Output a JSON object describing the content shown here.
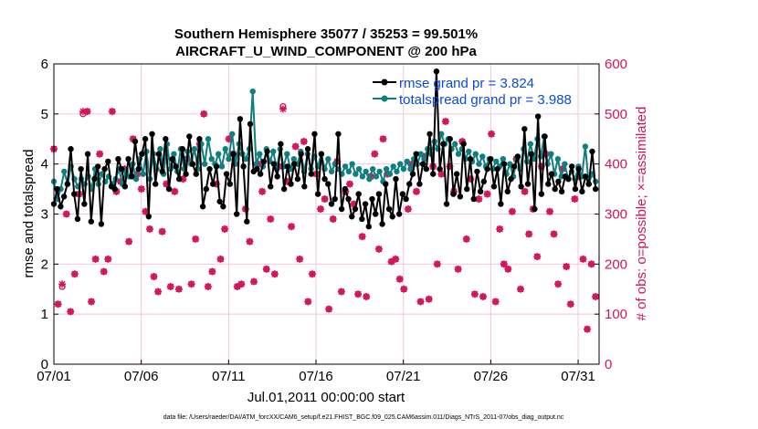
{
  "chart_data": {
    "type": "line",
    "title_line1": "Southern Hemisphere 35077 / 35253 = 99.501%",
    "title_line2": "AIRCRAFT_U_WIND_COMPONENT @ 200 hPa",
    "xlabel": "Jul.01,2011 00:00:00 start",
    "ylabel_left": "rmse and totalspread",
    "ylabel_right": "# of obs: o=possible; ×=assimilated",
    "xlim": [
      0,
      31.2
    ],
    "ylim_left": [
      0,
      6
    ],
    "ylim_right": [
      0,
      600
    ],
    "x_ticks": [
      0,
      5,
      10,
      15,
      20,
      25,
      30
    ],
    "x_tick_labels": [
      "07/01",
      "07/06",
      "07/11",
      "07/16",
      "07/21",
      "07/26",
      "07/31"
    ],
    "y_ticks_left": [
      "0",
      "1",
      "2",
      "3",
      "4",
      "5",
      "6"
    ],
    "y_ticks_right": [
      "0",
      "100",
      "200",
      "300",
      "400",
      "500",
      "600"
    ],
    "colors": {
      "rmse": "#000000",
      "totalspread": "#0f7f7f",
      "obs": "#d4145a",
      "legend_text": "#0a4bd9",
      "grid": "#f2c7d6"
    },
    "legend": [
      "rmse grand pr = 3.824",
      "totalspread grand pr = 3.988"
    ],
    "footer": "data file: /Users/raeder/DAI/ATM_forcXX/CAM6_setup/f.e21.FHIST_BGC.f09_025.CAM6assim.011/Diags_NTrS_2011-07/obs_diag_output.nc",
    "series": [
      {
        "name": "rmse",
        "axis": "left",
        "values": [
          3.2,
          3.5,
          3.15,
          3.35,
          3.6,
          4.3,
          3.4,
          2.9,
          3.9,
          3.2,
          4.2,
          2.85,
          3.7,
          3.95,
          2.8,
          3.9,
          4.05,
          3.55,
          3.5,
          4.1,
          3.9,
          3.55,
          4.1,
          3.75,
          4.45,
          3.9,
          4.2,
          4.5,
          2.95,
          4.6,
          3.6,
          4.2,
          3.85,
          4.5,
          3.5,
          4.1,
          3.95,
          3.7,
          4.3,
          3.8,
          4.55,
          4.0,
          3.8,
          4.5,
          3.15,
          3.5,
          3.9,
          3.6,
          3.95,
          3.25,
          3.15,
          3.8,
          3.6,
          4.2,
          3.0,
          4.9,
          3.95,
          2.85,
          4.8,
          3.85,
          3.9,
          3.8,
          4.05,
          4.25,
          3.55,
          4.0,
          3.75,
          4.4,
          3.5,
          3.95,
          3.6,
          4.0,
          3.7,
          4.2,
          3.55,
          4.3,
          3.8,
          4.6,
          3.4,
          4.2,
          3.7,
          3.6,
          3.2,
          3.3,
          4.6,
          3.1,
          3.5,
          3.3,
          2.95,
          3.1,
          3.4,
          2.9,
          3.2,
          2.75,
          3.3,
          3.0,
          3.4,
          2.8,
          3.6,
          3.1,
          2.95,
          3.7,
          3.0,
          3.4,
          3.3,
          3.6,
          3.8,
          4.2,
          3.6,
          4.0,
          3.9,
          4.6,
          3.8,
          5.85,
          3.9,
          4.4,
          3.2,
          4.5,
          3.4,
          3.8,
          3.35,
          4.4,
          3.5,
          4.1,
          3.3,
          3.85,
          3.45,
          3.65,
          3.9,
          4.1,
          3.55,
          3.9,
          3.2,
          4.0,
          3.45,
          3.7,
          3.95,
          4.15,
          3.55,
          4.7,
          3.6,
          4.2,
          3.1,
          4.95,
          3.4,
          4.55,
          3.6,
          3.8,
          3.5,
          3.65,
          3.45,
          3.75,
          3.7,
          3.95,
          3.5,
          3.9,
          3.45,
          3.75,
          3.6,
          4.25,
          3.5
        ]
      },
      {
        "name": "totalspread",
        "axis": "left",
        "values": [
          3.65,
          3.3,
          3.5,
          3.85,
          3.6,
          3.95,
          3.7,
          3.55,
          3.7,
          3.6,
          3.75,
          3.5,
          3.9,
          3.6,
          3.8,
          3.65,
          3.75,
          3.6,
          3.7,
          3.9,
          3.6,
          3.85,
          3.75,
          4.0,
          3.7,
          4.1,
          3.8,
          4.25,
          3.7,
          4.2,
          3.9,
          4.3,
          3.8,
          4.4,
          3.9,
          4.2,
          3.85,
          4.3,
          3.9,
          4.25,
          4.0,
          4.3,
          3.9,
          4.4,
          4.0,
          4.5,
          4.1,
          4.0,
          4.2,
          3.95,
          4.3,
          4.1,
          4.6,
          4.0,
          4.4,
          4.2,
          4.1,
          4.3,
          5.45,
          4.0,
          4.2,
          3.95,
          4.3,
          4.05,
          4.25,
          3.9,
          4.3,
          3.95,
          4.2,
          3.9,
          4.1,
          4.0,
          4.25,
          3.85,
          4.2,
          3.9,
          4.15,
          3.95,
          4.2,
          3.9,
          4.1,
          3.85,
          4.0,
          3.9,
          3.8,
          3.95,
          3.85,
          4.0,
          3.8,
          3.9,
          3.75,
          3.85,
          3.7,
          3.9,
          3.75,
          3.85,
          3.65,
          3.9,
          3.8,
          3.95,
          3.85,
          4.0,
          3.9,
          4.05,
          3.9,
          4.1,
          4.0,
          4.2,
          4.1,
          4.3,
          4.2,
          4.45,
          4.3,
          4.6,
          4.4,
          4.5,
          4.3,
          4.4,
          4.2,
          4.3,
          4.1,
          4.25,
          4.05,
          4.2,
          4.0,
          4.15,
          3.95,
          4.1,
          3.9,
          4.05,
          3.95,
          4.1,
          3.8,
          4.0,
          3.75,
          4.1,
          3.9,
          4.3,
          4.05,
          4.4,
          4.1,
          4.5,
          4.15,
          4.55,
          4.0,
          4.2,
          3.8,
          4.1,
          3.75,
          4.0,
          3.7,
          3.85,
          3.7,
          3.95,
          3.75,
          4.35,
          3.6,
          3.8,
          3.65
        ]
      },
      {
        "name": "obs_possible",
        "axis": "right",
        "values": [
          430,
          120,
          155,
          300,
          105,
          180,
          340,
          500,
          505,
          125,
          210,
          420,
          185,
          210,
          505,
          345,
          365,
          390,
          245,
          450,
          380,
          350,
          305,
          270,
          175,
          145,
          265,
          360,
          155,
          345,
          150,
          370,
          410,
          160,
          250,
          440,
          500,
          155,
          185,
          360,
          210,
          270,
          450,
          420,
          155,
          160,
          310,
          245,
          165,
          400,
          345,
          190,
          290,
          180,
          395,
          515,
          365,
          275,
          435,
          210,
          445,
          125,
          180,
          380,
          310,
          330,
          110,
          290,
          405,
          145,
          345,
          360,
          320,
          140,
          255,
          135,
          375,
          420,
          230,
          450,
          380,
          205,
          210,
          170,
          150,
          310,
          400,
          345,
          125,
          415,
          130,
          395,
          200,
          380,
          485,
          395,
          345,
          190,
          445,
          250,
          370,
          140,
          330,
          135,
          340,
          460,
          125,
          270,
          200,
          190,
          305,
          410,
          150,
          345,
          260,
          310,
          215,
          395,
          420,
          305,
          260,
          160,
          390,
          195,
          120,
          330,
          375,
          210,
          70,
          200,
          135
        ]
      },
      {
        "name": "obs_assimilated",
        "axis": "right",
        "values": [
          430,
          120,
          160,
          300,
          105,
          180,
          340,
          505,
          505,
          125,
          210,
          420,
          185,
          210,
          505,
          345,
          365,
          390,
          245,
          450,
          380,
          350,
          305,
          270,
          175,
          145,
          265,
          360,
          155,
          345,
          150,
          370,
          410,
          160,
          250,
          440,
          500,
          155,
          185,
          360,
          210,
          270,
          450,
          420,
          155,
          160,
          310,
          245,
          165,
          400,
          345,
          190,
          290,
          180,
          395,
          510,
          365,
          275,
          435,
          210,
          445,
          125,
          180,
          380,
          310,
          330,
          110,
          290,
          405,
          145,
          345,
          360,
          320,
          140,
          255,
          135,
          375,
          420,
          230,
          450,
          380,
          205,
          210,
          170,
          150,
          310,
          400,
          345,
          125,
          415,
          130,
          395,
          200,
          380,
          485,
          395,
          345,
          190,
          445,
          250,
          370,
          140,
          330,
          135,
          340,
          460,
          125,
          270,
          200,
          190,
          305,
          410,
          150,
          345,
          260,
          310,
          215,
          395,
          420,
          305,
          260,
          160,
          390,
          195,
          120,
          330,
          375,
          210,
          70,
          200,
          135
        ]
      }
    ]
  }
}
